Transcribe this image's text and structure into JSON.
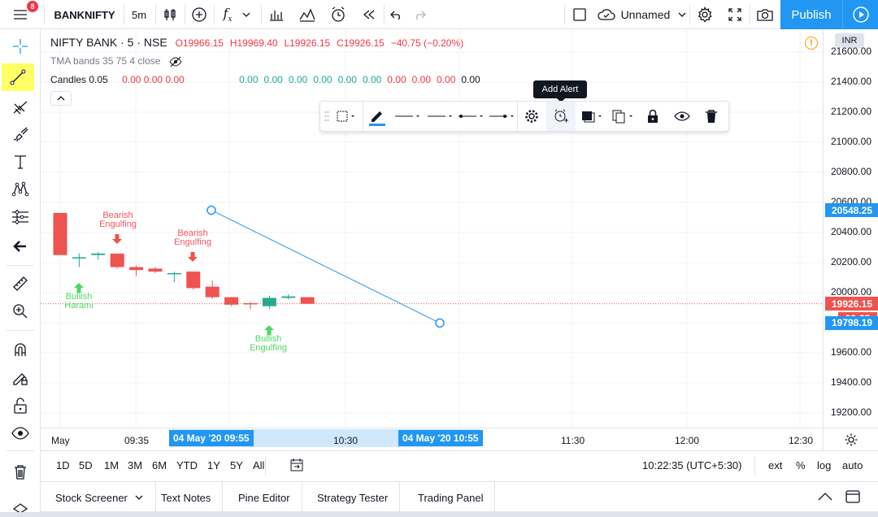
{
  "topbar": {
    "notification_count": "8",
    "symbol": "BANKNIFTY",
    "interval": "5m",
    "layout_name": "Unnamed",
    "publish_label": "Publish"
  },
  "legend": {
    "title": "NIFTY BANK · 5 · NSE",
    "open": "O19966.15",
    "high": "H19969.40",
    "low": "L19926.15",
    "close": "C19926.15",
    "change": "−40.75 (−0.20%)",
    "indicator1": "TMA bands 35 75 4 close",
    "indicator2_name": "Candles 0.05",
    "indicator2_values_a": "0.00  0.00  0.00",
    "indicator2_values_b": [
      "0.00",
      "0.00",
      "0.00",
      "0.00",
      "0.00",
      "0.00",
      "0.00",
      "0.00",
      "0.00",
      "0.00"
    ],
    "indicator2_value_colors": [
      "#f23645",
      "#f23645",
      "#f23645",
      "#22ab94",
      "#22ab94",
      "#22ab94",
      "#22ab94",
      "#22ab94",
      "#22ab94",
      "#f23645",
      "#f23645",
      "#f23645"
    ]
  },
  "tooltip": "Add Alert",
  "price_axis": {
    "currency": "INR",
    "labels": [
      "21600.00",
      "21400.00",
      "21200.00",
      "21000.00",
      "20800.00",
      "20600.00",
      "20400.00",
      "20200.00",
      "20000.00",
      "19800.00",
      "19600.00",
      "19400.00",
      "19200.00"
    ],
    "tag_line_start": "20548.25",
    "tag_last_price": "19926.15",
    "tag_countdown": "02:25",
    "tag_line_end": "19798.19"
  },
  "time_axis": {
    "labels": [
      "May",
      "09:35",
      "10:30",
      "11:30",
      "12:00",
      "12:30"
    ],
    "tag_start": "04 May '20  09:55",
    "tag_end": "04 May '20  10:55"
  },
  "signals": [
    {
      "text": "Bearish\nEngulfing",
      "type": "bearish"
    },
    {
      "text": "Bearish\nEngulfing",
      "type": "bearish"
    },
    {
      "text": "Bullish\nHarami",
      "type": "bullish"
    },
    {
      "text": "Bullish\nEngulfing",
      "type": "bullish"
    }
  ],
  "rangebar": {
    "ranges": [
      "1D",
      "5D",
      "1M",
      "3M",
      "6M",
      "YTD",
      "1Y",
      "5Y",
      "All"
    ],
    "clock": "10:22:35 (UTC+5:30)",
    "ext": "ext",
    "percent": "%",
    "log": "log",
    "auto": "auto"
  },
  "panel_tabs": [
    "Stock Screener",
    "Text Notes",
    "Pine Editor",
    "Strategy Tester",
    "Trading Panel"
  ],
  "colors": {
    "accent": "#2196f3",
    "up": "#22ab94",
    "down": "#ef5350",
    "bull_signal": "#4cd964",
    "bear_signal": "#f7525f",
    "highlight": "#ffff66"
  },
  "chart_data": {
    "type": "candlestick",
    "candles": [
      {
        "o": 20530,
        "h": 20530,
        "l": 20250,
        "c": 20250
      },
      {
        "o": 20230,
        "h": 20260,
        "l": 20170,
        "c": 20235
      },
      {
        "o": 20250,
        "h": 20270,
        "l": 20220,
        "c": 20260
      },
      {
        "o": 20260,
        "h": 20260,
        "l": 20160,
        "c": 20170
      },
      {
        "o": 20170,
        "h": 20180,
        "l": 20110,
        "c": 20150
      },
      {
        "o": 20160,
        "h": 20170,
        "l": 20130,
        "c": 20140
      },
      {
        "o": 20130,
        "h": 20140,
        "l": 20070,
        "c": 20130
      },
      {
        "o": 20140,
        "h": 20140,
        "l": 20020,
        "c": 20030
      },
      {
        "o": 20040,
        "h": 20080,
        "l": 19960,
        "c": 19970
      },
      {
        "o": 19970,
        "h": 19970,
        "l": 19910,
        "c": 19920
      },
      {
        "o": 19930,
        "h": 19940,
        "l": 19890,
        "c": 19925
      },
      {
        "o": 19910,
        "h": 19980,
        "l": 19890,
        "c": 19965
      },
      {
        "o": 19965,
        "h": 19990,
        "l": 19955,
        "c": 19975
      },
      {
        "o": 19970,
        "h": 19970,
        "l": 19926,
        "c": 19926
      }
    ],
    "trend_line": {
      "start_price": 20548.25,
      "end_price": 19798.19,
      "start_time": "04 May '20 09:55",
      "end_time": "04 May '20 10:55"
    },
    "last_price": 19926.15,
    "ylim": [
      19100,
      21700
    ]
  }
}
